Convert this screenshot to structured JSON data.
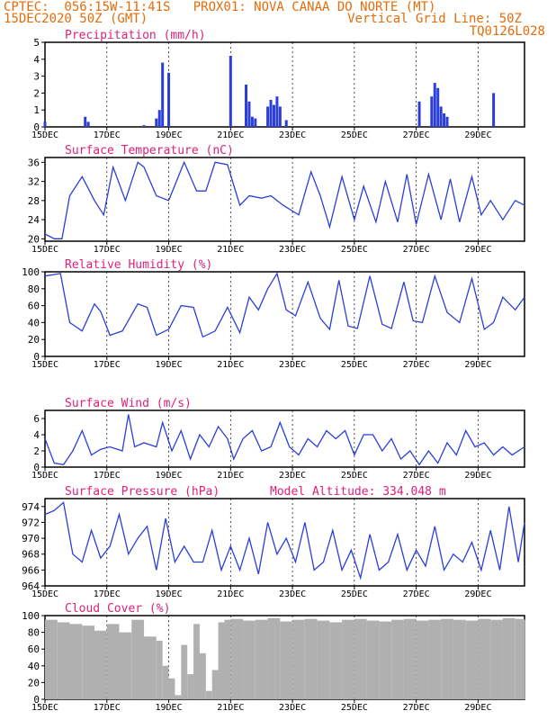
{
  "header": {
    "line1": "CPTEC:  056:15W-11:41S   PROX01: NOVA CANAA DO NORTE (MT)",
    "line2_left": "15DEC2020 50Z (GMT)",
    "line2_right": "Vertical Grid Line: 50Z",
    "line3_right": "TQ0126L028"
  },
  "colors": {
    "title": "#e0207a",
    "header": "#e46c0a",
    "line": "#2b3fd6",
    "bar": "#2b3fd6",
    "cloud": "#b0b0b0"
  },
  "x_tick_labels": [
    "15DEC",
    "17DEC",
    "19DEC",
    "21DEC",
    "23DEC",
    "25DEC",
    "27DEC",
    "29DEC"
  ],
  "chart_data": [
    {
      "type": "bar",
      "title": "Precipitation (mm/h)",
      "y_ticks": [
        "0",
        "1",
        "2",
        "3",
        "4",
        "5"
      ],
      "ylim": [
        0,
        5
      ],
      "x": [
        0.0,
        1.3,
        1.4,
        3.2,
        3.6,
        3.7,
        3.8,
        4.0,
        6.0,
        6.5,
        6.6,
        6.7,
        6.8,
        7.2,
        7.3,
        7.4,
        7.5,
        7.6,
        7.8,
        12.1,
        12.5,
        12.6,
        12.7,
        12.8,
        12.9,
        13.0,
        14.5
      ],
      "values": [
        0.3,
        0.6,
        0.3,
        0.1,
        0.5,
        1.0,
        3.8,
        3.2,
        4.2,
        2.5,
        1.5,
        0.6,
        0.5,
        1.2,
        1.6,
        1.3,
        1.8,
        1.2,
        0.4,
        1.5,
        1.8,
        2.6,
        2.3,
        1.2,
        0.8,
        0.6,
        2.0
      ]
    },
    {
      "type": "line",
      "title": "Surface Temperature (nC)",
      "y_ticks": [
        "20",
        "24",
        "28",
        "32",
        "36"
      ],
      "ylim": [
        19.5,
        37
      ],
      "x": [
        0,
        0.3,
        0.55,
        0.8,
        1.2,
        1.6,
        1.9,
        2.2,
        2.6,
        3.0,
        3.2,
        3.6,
        4.0,
        4.5,
        4.9,
        5.2,
        5.5,
        5.9,
        6.3,
        6.6,
        7.0,
        7.3,
        7.7,
        8.2,
        8.6,
        8.9,
        9.2,
        9.6,
        10.0,
        10.3,
        10.7,
        11.0,
        11.4,
        11.7,
        12.0,
        12.4,
        12.8,
        13.1,
        13.4,
        13.8,
        14.1,
        14.4,
        14.8,
        15.2,
        15.5
      ],
      "values": [
        21,
        20,
        20,
        29,
        33,
        28,
        25,
        35,
        28,
        36,
        35,
        29,
        28,
        36,
        30,
        30,
        36,
        35.5,
        27,
        29,
        28.5,
        29,
        27,
        25,
        34,
        29,
        22.5,
        33,
        24,
        31,
        23.5,
        32,
        23.5,
        33.5,
        23,
        33.5,
        24,
        32.5,
        23.5,
        33,
        25,
        28,
        24,
        28,
        27
      ]
    },
    {
      "type": "line",
      "title": "Relative Humidity (%)",
      "y_ticks": [
        "0",
        "20",
        "40",
        "60",
        "80",
        "100"
      ],
      "ylim": [
        0,
        100
      ],
      "x": [
        0,
        0.5,
        0.8,
        1.2,
        1.6,
        1.8,
        2.1,
        2.5,
        3.0,
        3.3,
        3.6,
        4.0,
        4.4,
        4.8,
        5.1,
        5.5,
        5.9,
        6.3,
        6.6,
        6.9,
        7.2,
        7.5,
        7.8,
        8.1,
        8.5,
        8.9,
        9.2,
        9.5,
        9.8,
        10.1,
        10.5,
        10.9,
        11.2,
        11.6,
        11.9,
        12.2,
        12.6,
        13.0,
        13.4,
        13.8,
        14.2,
        14.5,
        14.8,
        15.2,
        15.5
      ],
      "values": [
        95,
        98,
        40,
        30,
        62,
        53,
        25,
        30,
        62,
        58,
        25,
        32,
        60,
        58,
        23,
        30,
        58,
        28,
        70,
        55,
        80,
        98,
        55,
        48,
        88,
        45,
        32,
        90,
        36,
        33,
        95,
        38,
        33,
        88,
        42,
        40,
        95,
        52,
        40,
        92,
        32,
        40,
        70,
        55,
        70
      ]
    },
    {
      "type": "line",
      "title": "Surface Wind (m/s)",
      "y_ticks": [
        "0",
        "2",
        "4",
        "6"
      ],
      "ylim": [
        0,
        7
      ],
      "x": [
        0,
        0.3,
        0.6,
        0.9,
        1.2,
        1.5,
        1.8,
        2.1,
        2.5,
        2.7,
        2.9,
        3.2,
        3.6,
        3.8,
        4.1,
        4.4,
        4.7,
        5.0,
        5.3,
        5.6,
        5.9,
        6.1,
        6.4,
        6.7,
        7.0,
        7.3,
        7.6,
        7.9,
        8.2,
        8.5,
        8.8,
        9.1,
        9.4,
        9.7,
        10.0,
        10.3,
        10.6,
        10.9,
        11.2,
        11.5,
        11.8,
        12.1,
        12.4,
        12.7,
        13.0,
        13.3,
        13.6,
        13.9,
        14.2,
        14.5,
        14.8,
        15.1,
        15.5
      ],
      "values": [
        3.5,
        0.5,
        0.3,
        2.0,
        4.5,
        1.5,
        2.2,
        2.5,
        2.0,
        6.5,
        2.5,
        3.0,
        2.5,
        5.5,
        2.0,
        4.5,
        1.0,
        4.0,
        2.5,
        5.0,
        3.5,
        1.0,
        3.5,
        4.5,
        2.0,
        2.5,
        5.5,
        2.5,
        1.5,
        3.5,
        2.5,
        4.5,
        3.5,
        4.5,
        1.5,
        4.0,
        4.0,
        2.0,
        3.5,
        1.0,
        2.0,
        0.3,
        2.0,
        0.5,
        3.0,
        1.5,
        4.5,
        2.5,
        3.0,
        1.5,
        2.5,
        1.5,
        2.5
      ]
    },
    {
      "type": "line",
      "title": "Surface Pressure (hPa)",
      "annotation": "Model Altitude: 334.048 m",
      "y_ticks": [
        "964",
        "966",
        "968",
        "970",
        "972",
        "974"
      ],
      "ylim": [
        964,
        975
      ],
      "x": [
        0,
        0.3,
        0.6,
        0.9,
        1.2,
        1.5,
        1.8,
        2.1,
        2.4,
        2.7,
        3.0,
        3.3,
        3.6,
        3.9,
        4.2,
        4.5,
        4.8,
        5.1,
        5.4,
        5.7,
        6.0,
        6.3,
        6.6,
        6.9,
        7.2,
        7.5,
        7.8,
        8.1,
        8.4,
        8.7,
        9.0,
        9.3,
        9.6,
        9.9,
        10.2,
        10.5,
        10.8,
        11.1,
        11.4,
        11.7,
        12.0,
        12.3,
        12.6,
        12.9,
        13.2,
        13.5,
        13.8,
        14.1,
        14.4,
        14.7,
        15.0,
        15.3,
        15.5
      ],
      "values": [
        973,
        973.5,
        974.5,
        968,
        967,
        971,
        967.5,
        969,
        973,
        968,
        970,
        971.5,
        966,
        972.5,
        967,
        969,
        967,
        967,
        971,
        966,
        969,
        966,
        970,
        965.5,
        972,
        968,
        970,
        967,
        972,
        966,
        967,
        971,
        966,
        968.5,
        965,
        970.5,
        966,
        967,
        970.5,
        966,
        968.5,
        966.5,
        971.5,
        966,
        968,
        967,
        969.5,
        966,
        971,
        966,
        974,
        967,
        972
      ]
    },
    {
      "type": "area",
      "title": "Cloud Cover (%)",
      "y_ticks": [
        "0",
        "20",
        "40",
        "60",
        "80",
        "100"
      ],
      "ylim": [
        0,
        100
      ],
      "x": [
        0,
        0.4,
        0.8,
        1.2,
        1.6,
        2.0,
        2.4,
        2.8,
        3.2,
        3.6,
        3.8,
        4.0,
        4.2,
        4.4,
        4.6,
        4.8,
        5.0,
        5.2,
        5.4,
        5.6,
        5.8,
        6.0,
        6.4,
        6.8,
        7.2,
        7.6,
        8.0,
        8.4,
        8.8,
        9.2,
        9.6,
        10.0,
        10.4,
        10.8,
        11.2,
        11.6,
        12.0,
        12.4,
        12.8,
        13.2,
        13.6,
        14.0,
        14.4,
        14.8,
        15.2,
        15.5
      ],
      "values": [
        95,
        92,
        90,
        88,
        82,
        90,
        80,
        95,
        75,
        70,
        40,
        25,
        5,
        65,
        30,
        90,
        55,
        10,
        35,
        92,
        95,
        96,
        94,
        95,
        97,
        93,
        95,
        96,
        94,
        92,
        95,
        96,
        94,
        93,
        95,
        96,
        94,
        95,
        96,
        95,
        94,
        96,
        95,
        97,
        96,
        95
      ]
    }
  ]
}
